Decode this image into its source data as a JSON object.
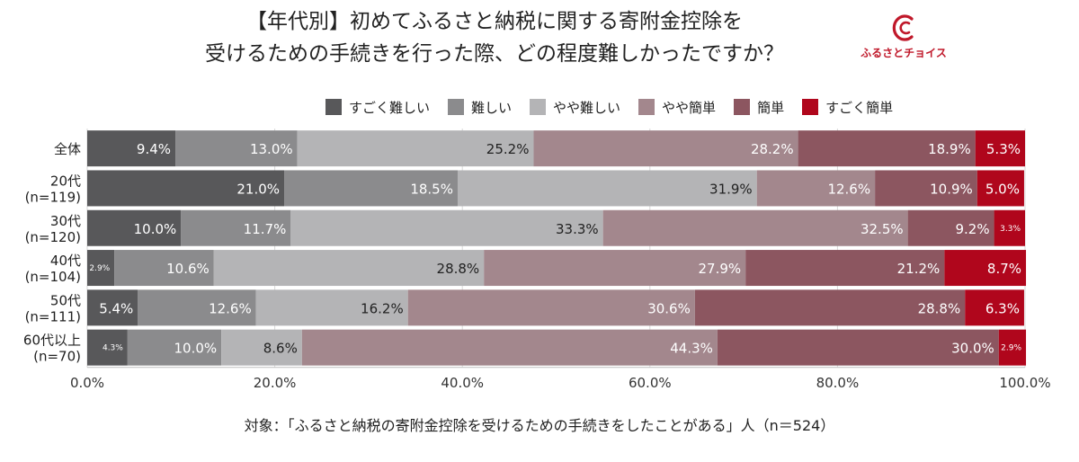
{
  "title": {
    "line1": "【年代別】初めてふるさと納税に関する寄附金控除を",
    "line2": "受けるための手続きを行った際、どの程度難しかったですか？"
  },
  "logo": {
    "text": "ふるさとチョイス",
    "icon": "furusato-choice-logo-icon",
    "color": "#c0182a"
  },
  "footnote": "対象：「ふるさと納税の寄附金控除を受けるための手続きをしたことがある」人（n＝524）",
  "chart_data": {
    "type": "bar",
    "orientation": "horizontal",
    "stacked": true,
    "percent": true,
    "categories": [
      [
        "全体"
      ],
      [
        "20代",
        "(n=119)"
      ],
      [
        "30代",
        "(n=120)"
      ],
      [
        "40代",
        "(n=104)"
      ],
      [
        "50代",
        "(n=111)"
      ],
      [
        "60代以上",
        "(n=70)"
      ]
    ],
    "series": [
      {
        "name": "すごく難しい",
        "color": "#58585a",
        "values": [
          9.4,
          21.0,
          10.0,
          2.9,
          5.4,
          4.3
        ]
      },
      {
        "name": "難しい",
        "color": "#8b8b8d",
        "values": [
          13.0,
          18.5,
          11.7,
          10.6,
          12.6,
          10.0
        ]
      },
      {
        "name": "やや難しい",
        "color": "#b4b4b6",
        "values": [
          25.2,
          31.9,
          33.3,
          28.8,
          16.2,
          8.6
        ]
      },
      {
        "name": "やや簡単",
        "color": "#a3878d",
        "values": [
          28.2,
          12.6,
          32.5,
          27.9,
          30.6,
          44.3
        ]
      },
      {
        "name": "簡単",
        "color": "#8c5660",
        "values": [
          18.9,
          10.9,
          9.2,
          21.2,
          28.8,
          30.0
        ]
      },
      {
        "name": "すごく簡単",
        "color": "#b0061c",
        "values": [
          5.3,
          5.0,
          3.3,
          8.7,
          6.3,
          2.9
        ]
      }
    ],
    "xlim": [
      0,
      100
    ],
    "xticks": [
      "0.0%",
      "20.0%",
      "40.0%",
      "60.0%",
      "80.0%",
      "100.0%"
    ],
    "legend_position": "top",
    "grid": true
  }
}
